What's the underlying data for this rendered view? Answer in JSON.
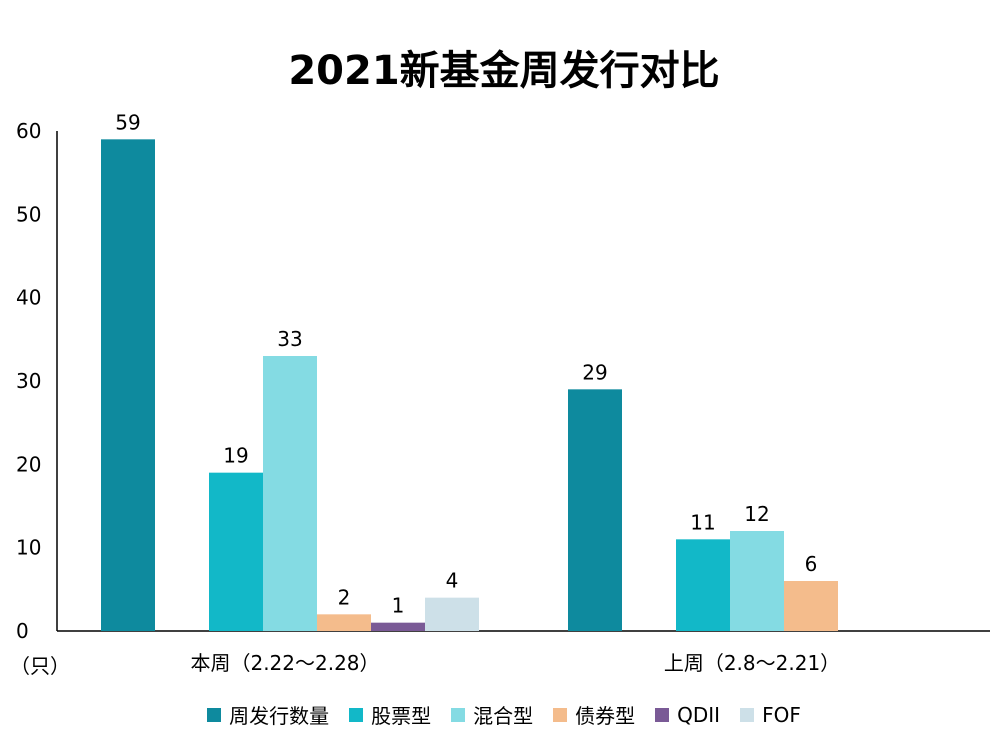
{
  "chart_data": {
    "type": "bar",
    "title": "2021新基金周发行对比",
    "unit": "（只）",
    "categories": [
      "本周（2.22～2.28）",
      "上周（2.8～2.21）"
    ],
    "series": [
      {
        "name": "周发行数量",
        "color": "#0e8a9e",
        "values": [
          59,
          29
        ]
      },
      {
        "name": "股票型",
        "color": "#12b8c8",
        "values": [
          19,
          11
        ]
      },
      {
        "name": "混合型",
        "color": "#84dbe3",
        "values": [
          33,
          12
        ]
      },
      {
        "name": "债券型",
        "color": "#f4bc8c",
        "values": [
          2,
          6
        ]
      },
      {
        "name": "QDII",
        "color": "#7a5a96",
        "values": [
          1,
          null
        ]
      },
      {
        "name": "FOF",
        "color": "#cde0e8",
        "values": [
          4,
          null
        ]
      }
    ],
    "ylim": [
      0,
      60
    ],
    "yticks": [
      0,
      10,
      20,
      30,
      40,
      50,
      60
    ],
    "legend_position": "bottom",
    "grid": false
  }
}
